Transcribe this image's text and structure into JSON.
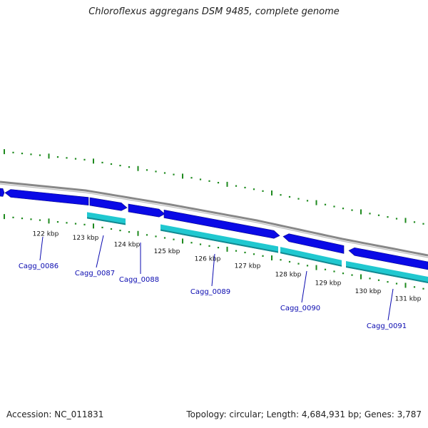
{
  "header": {
    "title": "Chloroflexus aggregans DSM 9485, complete genome"
  },
  "footer": {
    "accession": "Accession: NC_011831",
    "summary": "Topology: circular; Length: 4,684,931 bp; Genes: 3,787"
  },
  "colors": {
    "cds": "#0a0ae6",
    "cds_dark": "#05058a",
    "rna_light": "#20c8d0",
    "rna_dark": "#128890",
    "backbone": "#888888",
    "tick": "#1e8a1e",
    "label": "#0a0ab0"
  },
  "kbp_labels": [
    "122 kbp",
    "123 kbp",
    "124 kbp",
    "125 kbp",
    "126 kbp",
    "127 kbp",
    "128 kbp",
    "129 kbp",
    "130 kbp",
    "131 kbp"
  ],
  "gene_labels": [
    "Cagg_0086",
    "Cagg_0087",
    "Cagg_0088",
    "Cagg_0089",
    "Cagg_0090",
    "Cagg_0091"
  ]
}
